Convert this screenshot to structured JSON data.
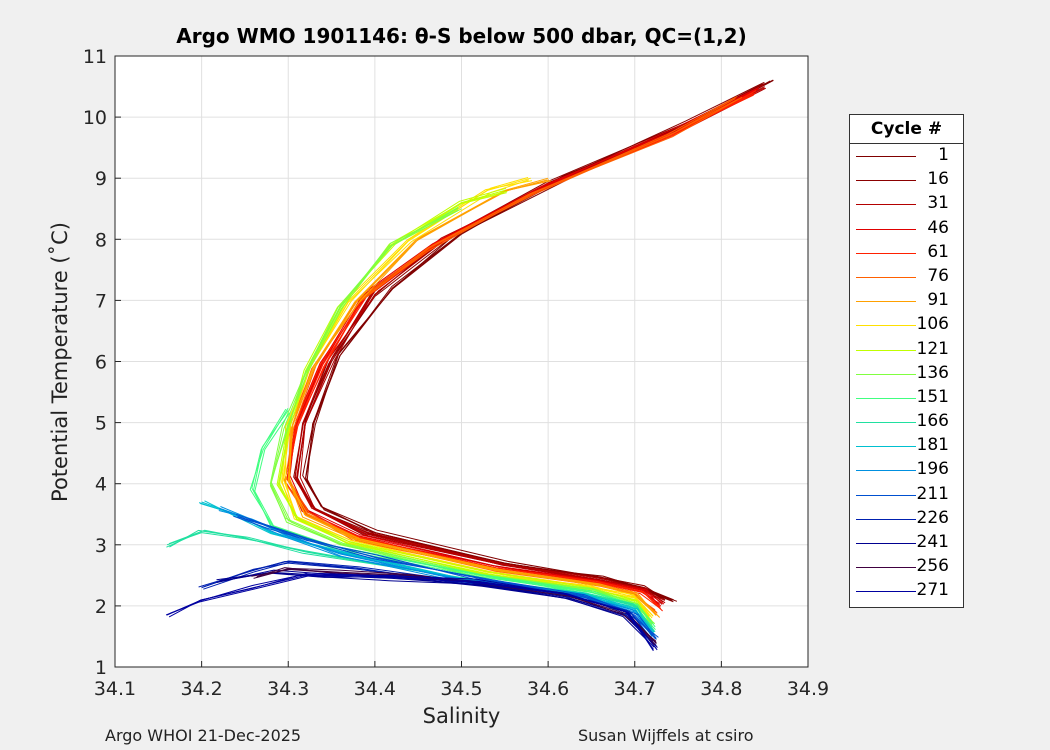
{
  "chart_data": {
    "type": "line",
    "title": "Argo WMO 1901146: θ-S below 500 dbar,  QC=(1,2)",
    "xlabel": "Salinity",
    "ylabel": "Potential Temperature (˚C)",
    "xlim": [
      34.1,
      34.9
    ],
    "ylim": [
      1,
      11
    ],
    "xticks": [
      "34.1",
      "34.2",
      "34.3",
      "34.4",
      "34.5",
      "34.6",
      "34.7",
      "34.8",
      "34.9"
    ],
    "yticks": [
      "1",
      "2",
      "3",
      "4",
      "5",
      "6",
      "7",
      "8",
      "9",
      "10",
      "11"
    ],
    "grid": true,
    "legend_title": "Cycle #",
    "legend_position": "outside-right",
    "series": [
      {
        "name": "1",
        "color": "#800000",
        "salinity": [
          34.86,
          34.78,
          34.62,
          34.5,
          34.42,
          34.36,
          34.33,
          34.32,
          34.34,
          34.4,
          34.55,
          34.66,
          34.71,
          34.745
        ],
        "theta": [
          10.6,
          10.0,
          9.0,
          8.1,
          7.2,
          6.1,
          5.0,
          4.1,
          3.6,
          3.2,
          2.7,
          2.45,
          2.3,
          2.1
        ]
      },
      {
        "name": "16",
        "color": "#8b0000",
        "salinity": [
          34.85,
          34.76,
          34.6,
          34.48,
          34.4,
          34.35,
          34.32,
          34.31,
          34.33,
          34.39,
          34.55,
          34.66,
          34.71,
          34.735
        ],
        "theta": [
          10.55,
          9.9,
          8.9,
          8.0,
          7.1,
          6.0,
          5.0,
          4.1,
          3.6,
          3.2,
          2.7,
          2.45,
          2.3,
          2.1
        ]
      },
      {
        "name": "31",
        "color": "#b30000",
        "salinity": [
          34.85,
          34.76,
          34.6,
          34.48,
          34.4,
          34.35,
          34.32,
          34.31,
          34.33,
          34.39,
          34.55,
          34.66,
          34.71,
          34.735
        ],
        "theta": [
          10.5,
          9.85,
          8.9,
          8.0,
          7.15,
          6.05,
          5.0,
          4.1,
          3.58,
          3.18,
          2.68,
          2.43,
          2.28,
          2.05
        ]
      },
      {
        "name": "46",
        "color": "#e00000",
        "salinity": [
          34.84,
          34.75,
          34.59,
          34.47,
          34.39,
          34.34,
          34.31,
          34.3,
          34.32,
          34.38,
          34.54,
          34.66,
          34.71,
          34.73
        ],
        "theta": [
          10.45,
          9.8,
          8.85,
          7.95,
          7.1,
          6.0,
          5.0,
          4.1,
          3.55,
          3.15,
          2.65,
          2.4,
          2.25,
          2.0
        ]
      },
      {
        "name": "61",
        "color": "#ff2000",
        "salinity": [
          34.84,
          34.75,
          34.59,
          34.47,
          34.39,
          34.34,
          34.31,
          34.3,
          34.32,
          34.38,
          34.54,
          34.66,
          34.71,
          34.73
        ],
        "theta": [
          10.4,
          9.75,
          8.8,
          7.9,
          7.05,
          5.95,
          4.95,
          4.05,
          3.52,
          3.12,
          2.62,
          2.38,
          2.22,
          1.95
        ]
      },
      {
        "name": "76",
        "color": "#ff6000",
        "salinity": [
          34.82,
          34.74,
          34.58,
          34.46,
          34.38,
          34.33,
          34.305,
          34.3,
          34.32,
          34.38,
          34.54,
          34.66,
          34.7,
          34.725
        ],
        "theta": [
          10.3,
          9.7,
          8.75,
          7.85,
          7.0,
          5.9,
          4.95,
          4.05,
          3.5,
          3.1,
          2.6,
          2.35,
          2.2,
          1.9
        ]
      },
      {
        "name": "91",
        "color": "#ffa000",
        "salinity": [
          34.6,
          34.55,
          34.45,
          34.38,
          34.33,
          34.305,
          34.3,
          34.32,
          34.38,
          34.54,
          34.66,
          34.7,
          34.725
        ],
        "theta": [
          9.0,
          8.8,
          8.0,
          7.0,
          5.9,
          4.95,
          4.05,
          3.48,
          3.08,
          2.58,
          2.33,
          2.18,
          1.85
        ]
      },
      {
        "name": "106",
        "color": "#ffe000",
        "salinity": [
          34.58,
          34.53,
          34.44,
          34.37,
          34.325,
          34.3,
          34.295,
          34.31,
          34.37,
          34.53,
          34.65,
          34.7,
          34.72
        ],
        "theta": [
          9.0,
          8.8,
          8.0,
          7.0,
          5.9,
          4.95,
          4.05,
          3.45,
          3.05,
          2.55,
          2.3,
          2.15,
          1.8
        ]
      },
      {
        "name": "121",
        "color": "#c0ff00",
        "salinity": [
          34.55,
          34.5,
          34.42,
          34.36,
          34.32,
          34.3,
          34.29,
          34.31,
          34.37,
          34.53,
          34.65,
          34.7,
          34.72
        ],
        "theta": [
          8.8,
          8.6,
          7.9,
          6.9,
          5.85,
          4.9,
          4.0,
          3.42,
          3.02,
          2.52,
          2.28,
          2.1,
          1.75
        ]
      },
      {
        "name": "136",
        "color": "#80ff40",
        "salinity": [
          34.5,
          34.42,
          34.36,
          34.32,
          34.295,
          34.28,
          34.3,
          34.36,
          34.52,
          34.65,
          34.7,
          34.72
        ],
        "theta": [
          8.5,
          7.9,
          6.9,
          5.8,
          4.9,
          4.0,
          3.4,
          3.0,
          2.5,
          2.25,
          2.05,
          1.7
        ]
      },
      {
        "name": "151",
        "color": "#40ff80",
        "salinity": [
          34.3,
          34.27,
          34.26,
          34.28,
          34.35,
          34.52,
          34.65,
          34.7,
          34.72
        ],
        "theta": [
          5.2,
          4.6,
          3.9,
          3.3,
          2.95,
          2.48,
          2.22,
          2.02,
          1.65
        ]
      },
      {
        "name": "166",
        "color": "#20e0a0",
        "salinity": [
          34.16,
          34.2,
          34.25,
          34.32,
          34.5,
          34.64,
          34.7,
          34.72
        ],
        "theta": [
          3.0,
          3.2,
          3.1,
          2.9,
          2.45,
          2.2,
          2.0,
          1.6
        ]
      },
      {
        "name": "181",
        "color": "#00c0d0",
        "salinity": [
          34.2,
          34.24,
          34.28,
          34.35,
          34.5,
          34.64,
          34.7,
          34.72
        ],
        "theta": [
          3.7,
          3.5,
          3.2,
          2.9,
          2.45,
          2.18,
          1.95,
          1.55
        ]
      },
      {
        "name": "196",
        "color": "#0090e0",
        "salinity": [
          34.22,
          34.26,
          34.3,
          34.36,
          34.5,
          34.64,
          34.7,
          34.72
        ],
        "theta": [
          3.6,
          3.4,
          3.15,
          2.85,
          2.42,
          2.15,
          1.9,
          1.5
        ]
      },
      {
        "name": "211",
        "color": "#0050d0",
        "salinity": [
          34.24,
          34.28,
          34.32,
          34.4,
          34.52,
          34.64,
          34.7,
          34.725
        ],
        "theta": [
          3.5,
          3.3,
          3.1,
          2.8,
          2.45,
          2.15,
          1.85,
          1.45
        ]
      },
      {
        "name": "226",
        "color": "#0020b0",
        "salinity": [
          34.2,
          34.26,
          34.3,
          34.38,
          34.5,
          34.62,
          34.69,
          34.72
        ],
        "theta": [
          2.3,
          2.6,
          2.7,
          2.6,
          2.4,
          2.2,
          1.9,
          1.4
        ]
      },
      {
        "name": "241",
        "color": "#000090",
        "salinity": [
          34.22,
          34.28,
          34.34,
          34.42,
          34.52,
          34.62,
          34.69,
          34.725
        ],
        "theta": [
          2.4,
          2.55,
          2.5,
          2.45,
          2.35,
          2.15,
          1.85,
          1.35
        ]
      },
      {
        "name": "256",
        "color": "#400040",
        "salinity": [
          34.26,
          34.3,
          34.36,
          34.44,
          34.52,
          34.62,
          34.69,
          34.725
        ],
        "theta": [
          2.45,
          2.6,
          2.55,
          2.5,
          2.4,
          2.2,
          1.9,
          1.4
        ]
      },
      {
        "name": "271",
        "color": "#0000a0",
        "salinity": [
          34.16,
          34.2,
          34.26,
          34.32,
          34.42,
          34.52,
          34.62,
          34.69,
          34.725
        ],
        "theta": [
          1.85,
          2.1,
          2.3,
          2.5,
          2.5,
          2.4,
          2.2,
          1.9,
          1.3
        ]
      }
    ]
  },
  "footer": {
    "left": "Argo WHOI 21-Dec-2025",
    "right": "Susan Wijffels at csiro"
  }
}
